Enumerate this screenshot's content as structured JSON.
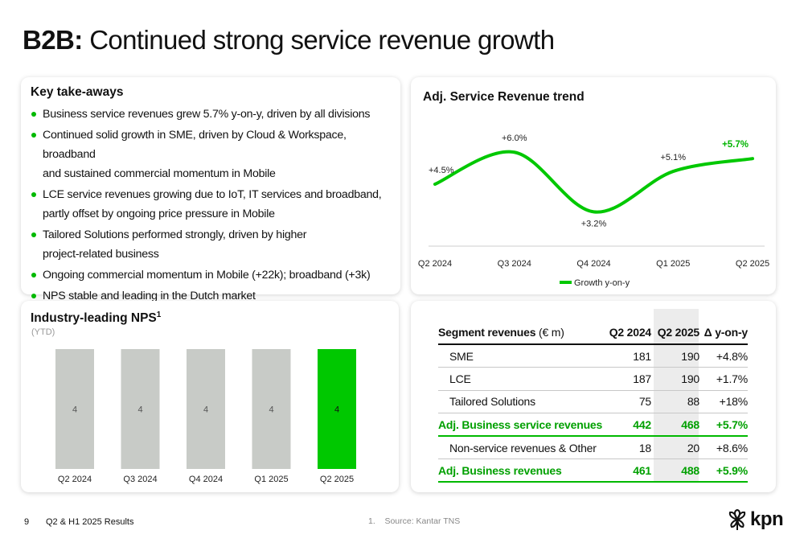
{
  "title": {
    "bold": "B2B:",
    "rest": "Continued strong service revenue growth"
  },
  "takeaways": {
    "heading": "Key take-aways",
    "lines": [
      [
        "Business service revenues grew 5.7% y-on-y, driven by all divisions"
      ],
      [
        "Continued solid growth in SME, driven by Cloud & Workspace, broadband",
        "and sustained commercial momentum in Mobile"
      ],
      [
        "LCE service revenues growing due to IoT, IT services and broadband,",
        "partly offset by ongoing price pressure in Mobile"
      ],
      [
        "Tailored Solutions performed strongly, driven by higher",
        "project-related business"
      ],
      [
        "Ongoing commercial momentum in Mobile (+22k); broadband (+3k)"
      ],
      [
        "NPS stable and leading in the Dutch market"
      ]
    ]
  },
  "trend": {
    "title": "Adj. Service Revenue trend",
    "legend": "Growth y-on-y",
    "chart_data": {
      "type": "line",
      "categories": [
        "Q2 2024",
        "Q3 2024",
        "Q4 2024",
        "Q1 2025",
        "Q2 2025"
      ],
      "series": [
        {
          "name": "Growth y-on-y",
          "values": [
            4.5,
            6.0,
            3.2,
            5.1,
            5.7
          ],
          "labels": [
            "+4.5%",
            "+6.0%",
            "+3.2%",
            "+5.1%",
            "+5.7%"
          ]
        }
      ],
      "ylim": [
        2.8,
        6.5
      ],
      "color": "#00c800"
    }
  },
  "nps": {
    "title": "Industry-leading NPS",
    "title_sup": "1",
    "subtitle": "(YTD)",
    "chart_data": {
      "type": "bar",
      "categories": [
        "Q2 2024",
        "Q3 2024",
        "Q4 2024",
        "Q1 2025",
        "Q2 2025"
      ],
      "values": [
        4,
        4,
        4,
        4,
        4
      ],
      "labels": [
        "4",
        "4",
        "4",
        "4",
        "4"
      ],
      "ylim": [
        0,
        4
      ],
      "colors": [
        "#c8cbc7",
        "#c8cbc7",
        "#c8cbc7",
        "#c8cbc7",
        "#00c800"
      ]
    }
  },
  "segment": {
    "header": {
      "label": "Segment revenues",
      "unit": "(€ m)",
      "c1": "Q2 2024",
      "c2": "Q2 2025",
      "c3": "Δ y-on-y"
    },
    "rows": [
      {
        "label": "SME",
        "c1": "181",
        "c2": "190",
        "c3": "+4.8%",
        "total": false
      },
      {
        "label": "LCE",
        "c1": "187",
        "c2": "190",
        "c3": "+1.7%",
        "total": false
      },
      {
        "label": "Tailored Solutions",
        "c1": "75",
        "c2": "88",
        "c3": "+18%",
        "total": false
      },
      {
        "label": "Adj. Business service revenues",
        "c1": "442",
        "c2": "468",
        "c3": "+5.7%",
        "total": true
      },
      {
        "label": "Non-service revenues & Other",
        "c1": "18",
        "c2": "20",
        "c3": "+8.6%",
        "total": false
      },
      {
        "label": "Adj. Business revenues",
        "c1": "461",
        "c2": "488",
        "c3": "+5.9%",
        "total": true
      }
    ]
  },
  "footer": {
    "page": "9",
    "report": "Q2 & H1 2025 Results",
    "source_num": "1.",
    "source": "Source: Kantar TNS",
    "logo": "kpn",
    "logo_icon": "kpn-flower-icon"
  }
}
